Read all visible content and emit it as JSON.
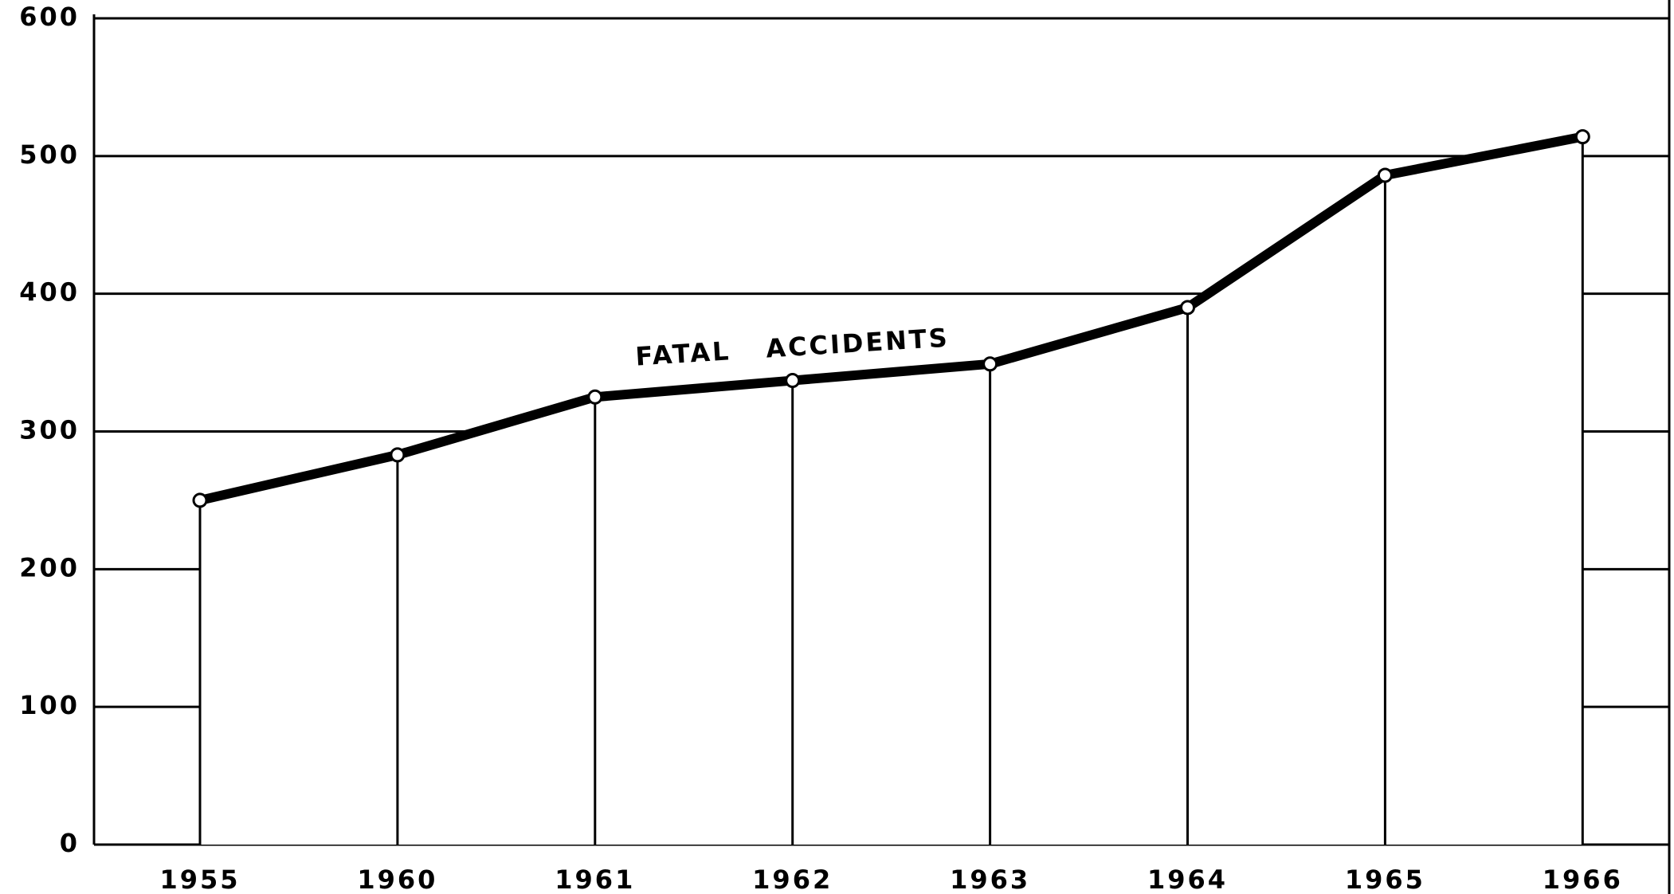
{
  "chart_data": {
    "type": "line",
    "categories": [
      "1955",
      "1960",
      "1961",
      "1962",
      "1963",
      "1964",
      "1965",
      "1966"
    ],
    "series": [
      {
        "name": "FATAL ACCIDENTS",
        "color": "#000000",
        "values": [
          250,
          283,
          325,
          337,
          349,
          390,
          486,
          514
        ]
      }
    ],
    "ylim": [
      0,
      600
    ],
    "yticks": [
      0,
      100,
      200,
      300,
      400,
      500,
      600
    ],
    "grid": true
  }
}
